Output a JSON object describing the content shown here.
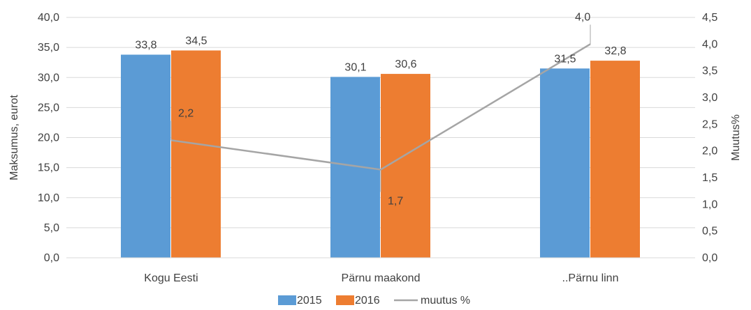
{
  "chart_data": {
    "type": "bar",
    "categories": [
      "Kogu Eesti",
      "Pärnu maakond",
      "..Pärnu linn"
    ],
    "series": [
      {
        "name": "2015",
        "type": "bar",
        "axis": "left",
        "color": "#5B9BD5",
        "values": [
          33.8,
          30.1,
          31.5
        ],
        "labels": [
          "33,8",
          "30,1",
          "31,5"
        ]
      },
      {
        "name": "2016",
        "type": "bar",
        "axis": "left",
        "color": "#ED7D31",
        "values": [
          34.5,
          30.6,
          32.8
        ],
        "labels": [
          "34,5",
          "30,6",
          "32,8"
        ]
      },
      {
        "name": "muutus %",
        "type": "line",
        "axis": "right",
        "color": "#A5A5A5",
        "values": [
          2.2,
          1.65,
          4.0
        ],
        "labels": [
          "2,2",
          "1,7",
          "4,0"
        ]
      }
    ],
    "ylabel": "Maksumus, eurot",
    "ylim": [
      0,
      40
    ],
    "yticks": [
      "0,0",
      "5,0",
      "10,0",
      "15,0",
      "20,0",
      "25,0",
      "30,0",
      "35,0",
      "40,0"
    ],
    "y2label": "Muutus%",
    "y2lim": [
      0,
      4.5
    ],
    "y2ticks": [
      "0,0",
      "0,5",
      "1,0",
      "1,5",
      "2,0",
      "2,5",
      "3,0",
      "3,5",
      "4,0",
      "4,5"
    ],
    "grid": true,
    "gridColor": "#D9D9D9",
    "legend_position": "bottom"
  }
}
